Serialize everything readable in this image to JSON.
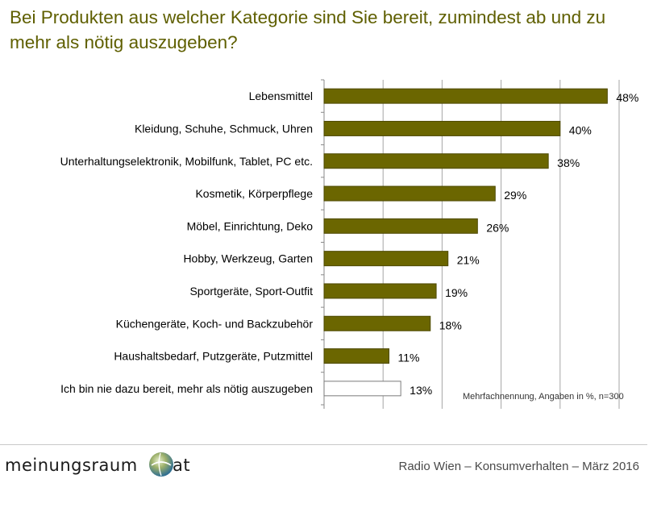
{
  "title": {
    "line1": "Bei Produkten aus welcher Kategorie sind Sie bereit, zumindest ab und zu",
    "line2": "mehr als nötig auszugeben?"
  },
  "chart_data": {
    "type": "bar",
    "orientation": "horizontal",
    "title": "Bei Produkten aus welcher Kategorie sind Sie bereit, zumindest ab und zu mehr als nötig auszugeben?",
    "categories": [
      "Lebensmittel",
      "Kleidung, Schuhe, Schmuck, Uhren",
      "Unterhaltungselektronik, Mobilfunk, Tablet, PC etc.",
      "Kosmetik, Körperpflege",
      "Möbel, Einrichtung, Deko",
      "Hobby, Werkzeug, Garten",
      "Sportgeräte, Sport-Outfit",
      "Küchengeräte, Koch- und Backzubehör",
      "Haushaltsbedarf, Putzgeräte, Putzmittel",
      "Ich bin nie dazu bereit, mehr als nötig auszugeben"
    ],
    "values": [
      48,
      40,
      38,
      29,
      26,
      21,
      19,
      18,
      11,
      13
    ],
    "value_labels": [
      "48%",
      "40%",
      "38%",
      "29%",
      "26%",
      "21%",
      "19%",
      "18%",
      "11%",
      "13%"
    ],
    "xlim": [
      0,
      50
    ],
    "grid": true,
    "colors": {
      "bar": "#6b6600",
      "bar_outline": "#4d4900",
      "last_bar_fill": "#ffffff",
      "last_bar_outline": "#7a7a7a",
      "grid": "#a6a6a6"
    }
  },
  "note": "Mehrfachnennung, Angaben in %, n=300",
  "footer": {
    "logo_left": "meinungsraum",
    "logo_right": "at",
    "logo_icon": "globe-icon",
    "source": "Radio Wien – Konsumverhalten – März 2016"
  }
}
